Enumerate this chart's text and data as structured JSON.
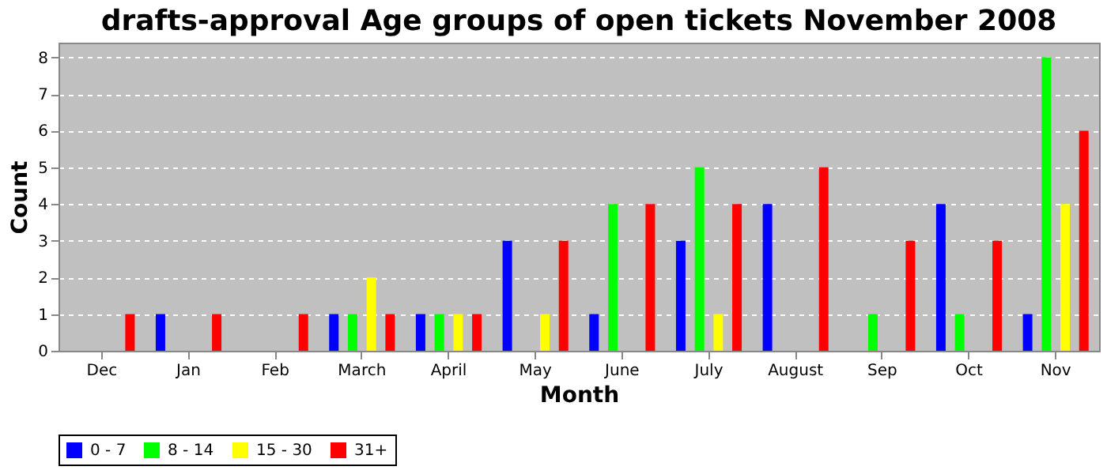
{
  "chart_data": {
    "type": "bar",
    "title": "drafts-approval Age groups of open tickets November 2008",
    "xlabel": "Month",
    "ylabel": "Count",
    "categories": [
      "Dec",
      "Jan",
      "Feb",
      "March",
      "April",
      "May",
      "June",
      "July",
      "August",
      "Sep",
      "Oct",
      "Nov"
    ],
    "series": [
      {
        "name": "0 - 7",
        "color": "#0000ff",
        "values": [
          null,
          1,
          null,
          1,
          1,
          3,
          1,
          3,
          4,
          null,
          4,
          1
        ]
      },
      {
        "name": "8 - 14",
        "color": "#00ff00",
        "values": [
          null,
          null,
          null,
          1,
          1,
          null,
          4,
          5,
          null,
          1,
          1,
          8
        ]
      },
      {
        "name": "15 - 30",
        "color": "#ffff00",
        "values": [
          null,
          null,
          null,
          2,
          1,
          1,
          null,
          1,
          null,
          null,
          null,
          4
        ]
      },
      {
        "name": "31+",
        "color": "#ff0000",
        "values": [
          1,
          1,
          1,
          1,
          1,
          3,
          4,
          4,
          5,
          3,
          3,
          6
        ]
      }
    ],
    "ylim": [
      0,
      8.4
    ],
    "yticks": [
      0,
      1,
      2,
      3,
      4,
      5,
      6,
      7,
      8
    ],
    "grid": "y",
    "legend": "bottom"
  }
}
